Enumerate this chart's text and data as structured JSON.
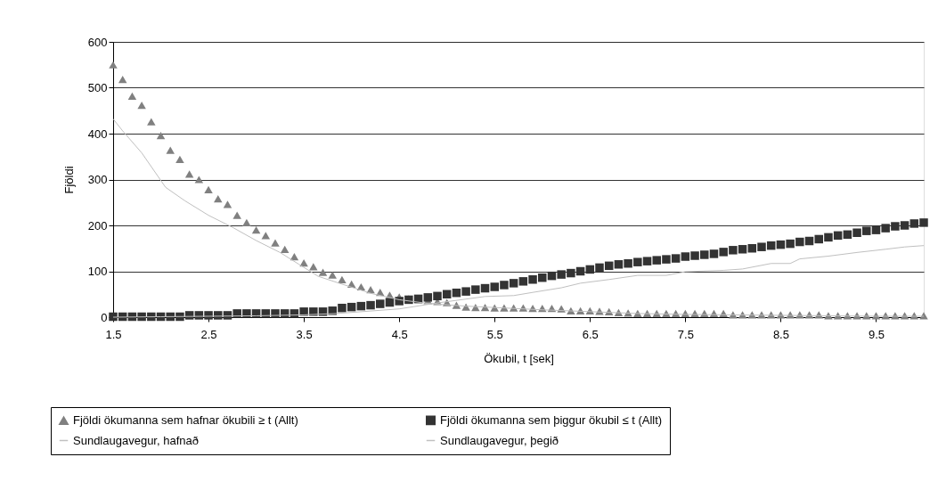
{
  "chart_data": {
    "type": "scatter",
    "xlabel": "Ökubil, t [sek]",
    "ylabel": "Fjöldi",
    "x": [
      1.5,
      1.6,
      1.7,
      1.8,
      1.9,
      2.0,
      2.1,
      2.2,
      2.3,
      2.4,
      2.5,
      2.6,
      2.7,
      2.8,
      2.9,
      3.0,
      3.1,
      3.2,
      3.3,
      3.4,
      3.5,
      3.6,
      3.7,
      3.8,
      3.9,
      4.0,
      4.1,
      4.2,
      4.3,
      4.4,
      4.5,
      4.6,
      4.7,
      4.8,
      4.9,
      5.0,
      5.1,
      5.2,
      5.3,
      5.4,
      5.5,
      5.6,
      5.7,
      5.8,
      5.9,
      6.0,
      6.1,
      6.2,
      6.3,
      6.4,
      6.5,
      6.6,
      6.7,
      6.8,
      6.9,
      7.0,
      7.1,
      7.2,
      7.3,
      7.4,
      7.5,
      7.6,
      7.7,
      7.8,
      7.9,
      8.0,
      8.1,
      8.2,
      8.3,
      8.4,
      8.5,
      8.6,
      8.7,
      8.8,
      8.9,
      9.0,
      9.1,
      9.2,
      9.3,
      9.4,
      9.5,
      9.6,
      9.7,
      9.8,
      9.9,
      10.0
    ],
    "series": [
      {
        "name": "Fjöldi ökumanna sem hafnar ökubili ≥ t (Allt)",
        "marker": "triangle",
        "color": "#808080",
        "values": [
          550,
          518,
          482,
          462,
          426,
          396,
          364,
          344,
          312,
          300,
          278,
          258,
          246,
          222,
          206,
          190,
          178,
          162,
          148,
          132,
          118,
          110,
          98,
          92,
          82,
          72,
          66,
          60,
          54,
          48,
          44,
          40,
          38,
          36,
          34,
          32,
          26,
          22,
          21,
          21,
          20,
          20,
          20,
          20,
          19,
          19,
          19,
          18,
          14,
          14,
          14,
          13,
          12,
          10,
          9,
          8,
          8,
          8,
          8,
          8,
          8,
          8,
          8,
          8,
          8,
          5,
          5,
          5,
          5,
          5,
          5,
          5,
          5,
          5,
          5,
          3,
          3,
          3,
          3,
          3,
          3,
          3,
          3,
          3,
          3,
          3
        ]
      },
      {
        "name": "Fjöldi ökumanna sem þiggur ökubil ≤ t (Allt)",
        "marker": "square",
        "color": "#333333",
        "values": [
          1,
          1,
          1,
          1,
          1,
          1,
          1,
          1,
          4,
          4,
          4,
          4,
          4,
          8,
          8,
          8,
          8,
          8,
          8,
          8,
          12,
          12,
          12,
          14,
          20,
          22,
          24,
          26,
          29,
          32,
          35,
          38,
          40,
          43,
          46,
          50,
          53,
          56,
          60,
          63,
          66,
          70,
          74,
          78,
          82,
          86,
          90,
          93,
          96,
          100,
          104,
          108,
          112,
          115,
          117,
          120,
          122,
          124,
          126,
          128,
          132,
          134,
          136,
          138,
          142,
          146,
          148,
          150,
          153,
          156,
          158,
          160,
          164,
          166,
          170,
          174,
          178,
          180,
          184,
          188,
          190,
          194,
          198,
          200,
          204,
          206
        ]
      },
      {
        "name": "Sundlaugavegur, hafnað",
        "type": "line",
        "marker": "none",
        "color": "#c0c0c0",
        "x": [
          1.5,
          1.6,
          1.8,
          2.05,
          2.25,
          2.5,
          2.75,
          3.0,
          3.25,
          3.45,
          3.65,
          3.9,
          4.2,
          4.5,
          4.8,
          5.2,
          5.6,
          6.0,
          6.5,
          7.0,
          7.5,
          8.0,
          8.5,
          9.0,
          9.5,
          10.0
        ],
        "values": [
          432,
          406,
          358,
          283,
          254,
          222,
          196,
          167,
          141,
          115,
          89,
          72,
          52,
          38,
          30,
          24,
          20,
          16,
          12,
          8,
          6,
          5,
          4,
          3,
          2,
          2
        ]
      },
      {
        "name": "Sundlaugavegur, þegið",
        "type": "line",
        "marker": "none",
        "color": "#c0c0c0",
        "x": [
          1.5,
          2.0,
          2.5,
          3.0,
          3.5,
          3.85,
          4.5,
          4.9,
          5.4,
          5.7,
          5.9,
          6.2,
          6.4,
          6.7,
          7.0,
          7.3,
          7.5,
          7.9,
          8.1,
          8.4,
          8.6,
          8.7,
          9.0,
          9.3,
          9.6,
          9.8,
          10.0
        ],
        "values": [
          0,
          1,
          2,
          3,
          5,
          8,
          18,
          31,
          45,
          47,
          54,
          64,
          74,
          82,
          91,
          91,
          99,
          102,
          105,
          117,
          117,
          127,
          133,
          141,
          148,
          153,
          156
        ]
      }
    ],
    "xlim": [
      1.5,
      10.0
    ],
    "xticks": [
      1.5,
      2.5,
      3.5,
      4.5,
      5.5,
      6.5,
      7.5,
      8.5,
      9.5
    ],
    "ylim": [
      0,
      600
    ],
    "yticks": [
      0,
      100,
      200,
      300,
      400,
      500,
      600
    ],
    "grid": "y",
    "legend": "bottom",
    "line_style": "solid"
  }
}
